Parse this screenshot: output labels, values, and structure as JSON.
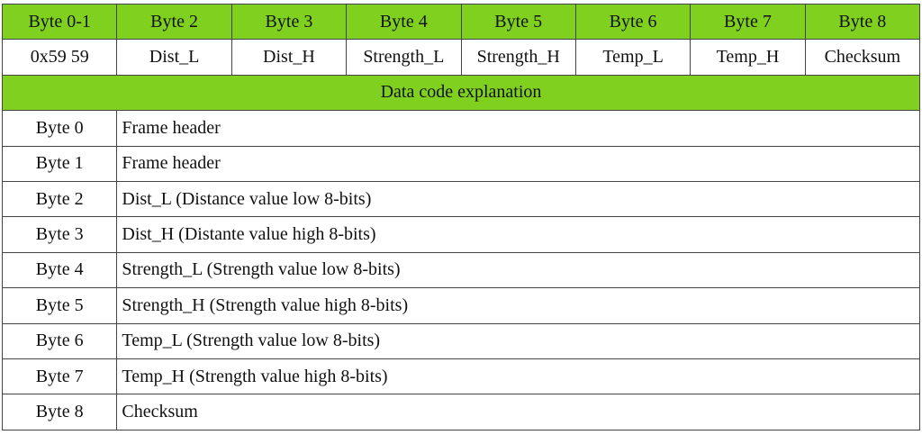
{
  "table": {
    "header": [
      "Byte 0-1",
      "Byte 2",
      "Byte 3",
      "Byte 4",
      "Byte 5",
      "Byte 6",
      "Byte 7",
      "Byte 8"
    ],
    "fields": [
      "0x59 59",
      "Dist_L",
      "Dist_H",
      "Strength_L",
      "Strength_H",
      "Temp_L",
      "Temp_H",
      "Checksum"
    ],
    "explanation_title": "Data code explanation",
    "rows": [
      [
        "Byte 0",
        "Frame header"
      ],
      [
        "Byte 1",
        "Frame header"
      ],
      [
        "Byte 2",
        "Dist_L (Distance value low 8-bits)"
      ],
      [
        "Byte 3",
        "Dist_H (Distante value high 8-bits)"
      ],
      [
        "Byte 4",
        "Strength_L (Strength value low 8-bits)"
      ],
      [
        "Byte 5",
        "Strength_H (Strength value high 8-bits)"
      ],
      [
        "Byte 6",
        "Temp_L (Strength value low 8-bits)"
      ],
      [
        "Byte 7",
        "Temp_H (Strength value high 8-bits)"
      ],
      [
        "Byte 8",
        "Checksum"
      ]
    ]
  }
}
